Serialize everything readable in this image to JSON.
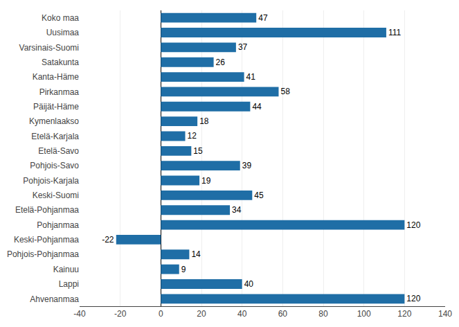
{
  "chart_data": {
    "type": "bar",
    "orientation": "horizontal",
    "categories": [
      "Koko maa",
      "Uusimaa",
      "Varsinais-Suomi",
      "Satakunta",
      "Kanta-Häme",
      "Pirkanmaa",
      "Päijät-Häme",
      "Kymenlaakso",
      "Etelä-Karjala",
      "Etelä-Savo",
      "Pohjois-Savo",
      "Pohjois-Karjala",
      "Keski-Suomi",
      "Etelä-Pohjanmaa",
      "Pohjanmaa",
      "Keski-Pohjanmaa",
      "Pohjois-Pohjanmaa",
      "Kainuu",
      "Lappi",
      "Ahvenanmaa"
    ],
    "values": [
      47,
      111,
      37,
      26,
      41,
      58,
      44,
      18,
      12,
      15,
      39,
      19,
      45,
      34,
      120,
      -22,
      14,
      9,
      40,
      120
    ],
    "color": "#1F6EA6",
    "xlim": [
      -40,
      140
    ],
    "xticks": [
      -40,
      -20,
      0,
      20,
      40,
      60,
      80,
      100,
      120,
      140
    ],
    "grid": true,
    "data_labels": true
  }
}
